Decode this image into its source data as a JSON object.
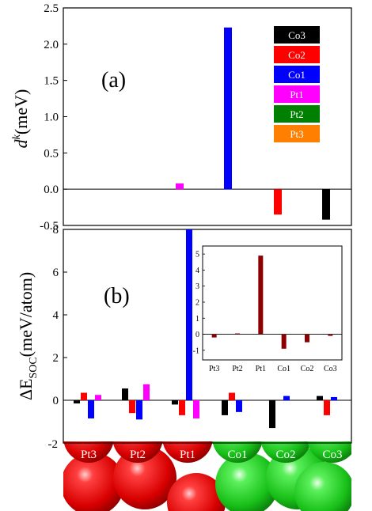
{
  "chart_data": [
    {
      "type": "bar",
      "panel_label": "(a)",
      "ylabel_main": "d",
      "ylabel_sup": "k",
      "ylabel_rest": "(meV)",
      "ylim": [
        -0.5,
        2.5
      ],
      "yticks": [
        "2.5",
        "2.0",
        "1.5",
        "1.0",
        "0.5",
        "0.0",
        "-0.5"
      ],
      "yticks_values": [
        2.5,
        2.0,
        1.5,
        1.0,
        0.5,
        0.0,
        -0.5
      ],
      "categories": [
        "Pt3",
        "Pt2",
        "Pt1",
        "Co1",
        "Co2",
        "Co3"
      ],
      "series": [
        {
          "name": "Pt1",
          "color": "#ff00ff",
          "category": "Pt1",
          "value": 0.08
        },
        {
          "name": "Co1",
          "color": "#0000ff",
          "category": "Co1",
          "value": 2.23
        },
        {
          "name": "Co2",
          "color": "#ff0000",
          "category": "Co2",
          "value": -0.35
        },
        {
          "name": "Co3",
          "color": "#000000",
          "category": "Co3",
          "value": -0.42
        }
      ],
      "legend": [
        {
          "label": "Co3",
          "color": "#000000"
        },
        {
          "label": "Co2",
          "color": "#ff0000"
        },
        {
          "label": "Co1",
          "color": "#0000ff"
        },
        {
          "label": "Pt1",
          "color": "#ff00ff"
        },
        {
          "label": "Pt2",
          "color": "#008000"
        },
        {
          "label": "Pt3",
          "color": "#ff8000"
        }
      ],
      "legend_position": "top-right"
    },
    {
      "type": "bar",
      "panel_label": "(b)",
      "ylabel_prefix": "ΔE",
      "ylabel_sub": "SOC",
      "ylabel_rest": "(meV/atom)",
      "ylim": [
        -2,
        8
      ],
      "yticks": [
        "8",
        "6",
        "4",
        "2",
        "0",
        "-2"
      ],
      "yticks_values": [
        8,
        6,
        4,
        2,
        0,
        -2
      ],
      "categories": [
        "Pt3",
        "Pt2",
        "Pt1",
        "Co1",
        "Co2",
        "Co3"
      ],
      "series": [
        {
          "name": "Co3",
          "color": "#000000",
          "values": [
            -0.15,
            0.55,
            -0.2,
            -0.7,
            -1.3,
            0.2
          ]
        },
        {
          "name": "Co2",
          "color": "#ff0000",
          "values": [
            0.35,
            -0.6,
            -0.7,
            0.35,
            0.0,
            -0.7
          ]
        },
        {
          "name": "Co1",
          "color": "#0000ff",
          "values": [
            -0.85,
            -0.9,
            8.0,
            -0.55,
            0.2,
            0.15
          ]
        },
        {
          "name": "Pt1",
          "color": "#ff00ff",
          "values": [
            0.25,
            0.75,
            -0.85,
            0.0,
            0.0,
            0.0
          ]
        }
      ],
      "inset": {
        "type": "bar",
        "color": "#8b0000",
        "categories": [
          "Pt3",
          "Pt2",
          "Pt1",
          "Co1",
          "Co2",
          "Co3"
        ],
        "values": [
          -0.2,
          0.05,
          4.9,
          -0.9,
          -0.5,
          -0.1
        ],
        "ylim": [
          -1.6,
          5.5
        ],
        "yticks": [
          "5",
          "4",
          "3",
          "2",
          "1",
          "0",
          "-1"
        ],
        "yticks_values": [
          5,
          4,
          3,
          2,
          1,
          0,
          -1
        ]
      }
    }
  ],
  "atoms": {
    "labels": [
      "Pt3",
      "Pt2",
      "Pt1",
      "Co1",
      "Co2",
      "Co3"
    ],
    "pt_color": "#e01010",
    "co_color": "#22d322"
  }
}
